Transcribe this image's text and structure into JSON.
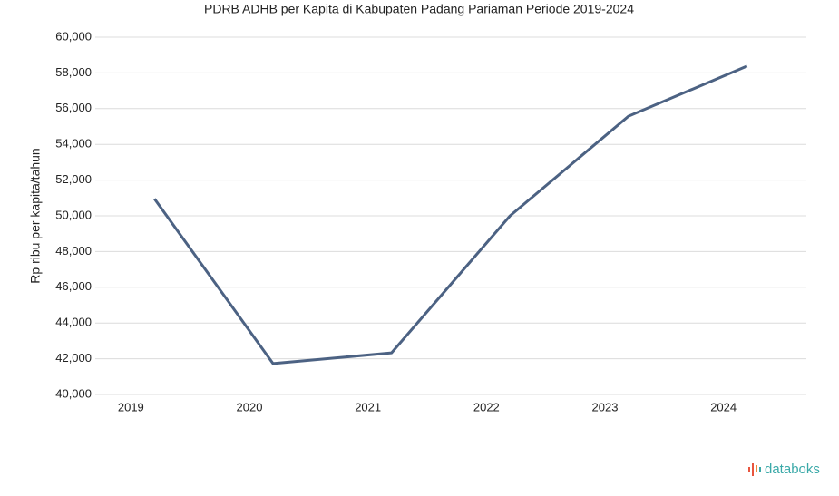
{
  "chart_data": {
    "type": "line",
    "title": "PDRB ADHB per Kapita di Kabupaten Padang Pariaman Periode 2019-2024",
    "y_label": "Rp ribu per kapita/tahun",
    "categories": [
      "2019",
      "2020",
      "2021",
      "2022",
      "2023",
      "2024"
    ],
    "series": [
      {
        "name": "PDRB ADHB per Kapita",
        "color": "#4c6283",
        "values": [
          50950,
          41730,
          42330,
          50000,
          55580,
          58380
        ]
      }
    ],
    "ylim": [
      40000,
      60000
    ],
    "yticks": [
      {
        "value": 40000,
        "label": "40,000"
      },
      {
        "value": 42000,
        "label": "42,000"
      },
      {
        "value": 44000,
        "label": "44,000"
      },
      {
        "value": 46000,
        "label": "46,000"
      },
      {
        "value": 48000,
        "label": "48,000"
      },
      {
        "value": 50000,
        "label": "50,000"
      },
      {
        "value": 52000,
        "label": "52,000"
      },
      {
        "value": 54000,
        "label": "54,000"
      },
      {
        "value": 56000,
        "label": "56,000"
      },
      {
        "value": 58000,
        "label": "58,000"
      },
      {
        "value": 60000,
        "label": "60,000"
      }
    ],
    "grid": true
  },
  "brand": "databoks"
}
